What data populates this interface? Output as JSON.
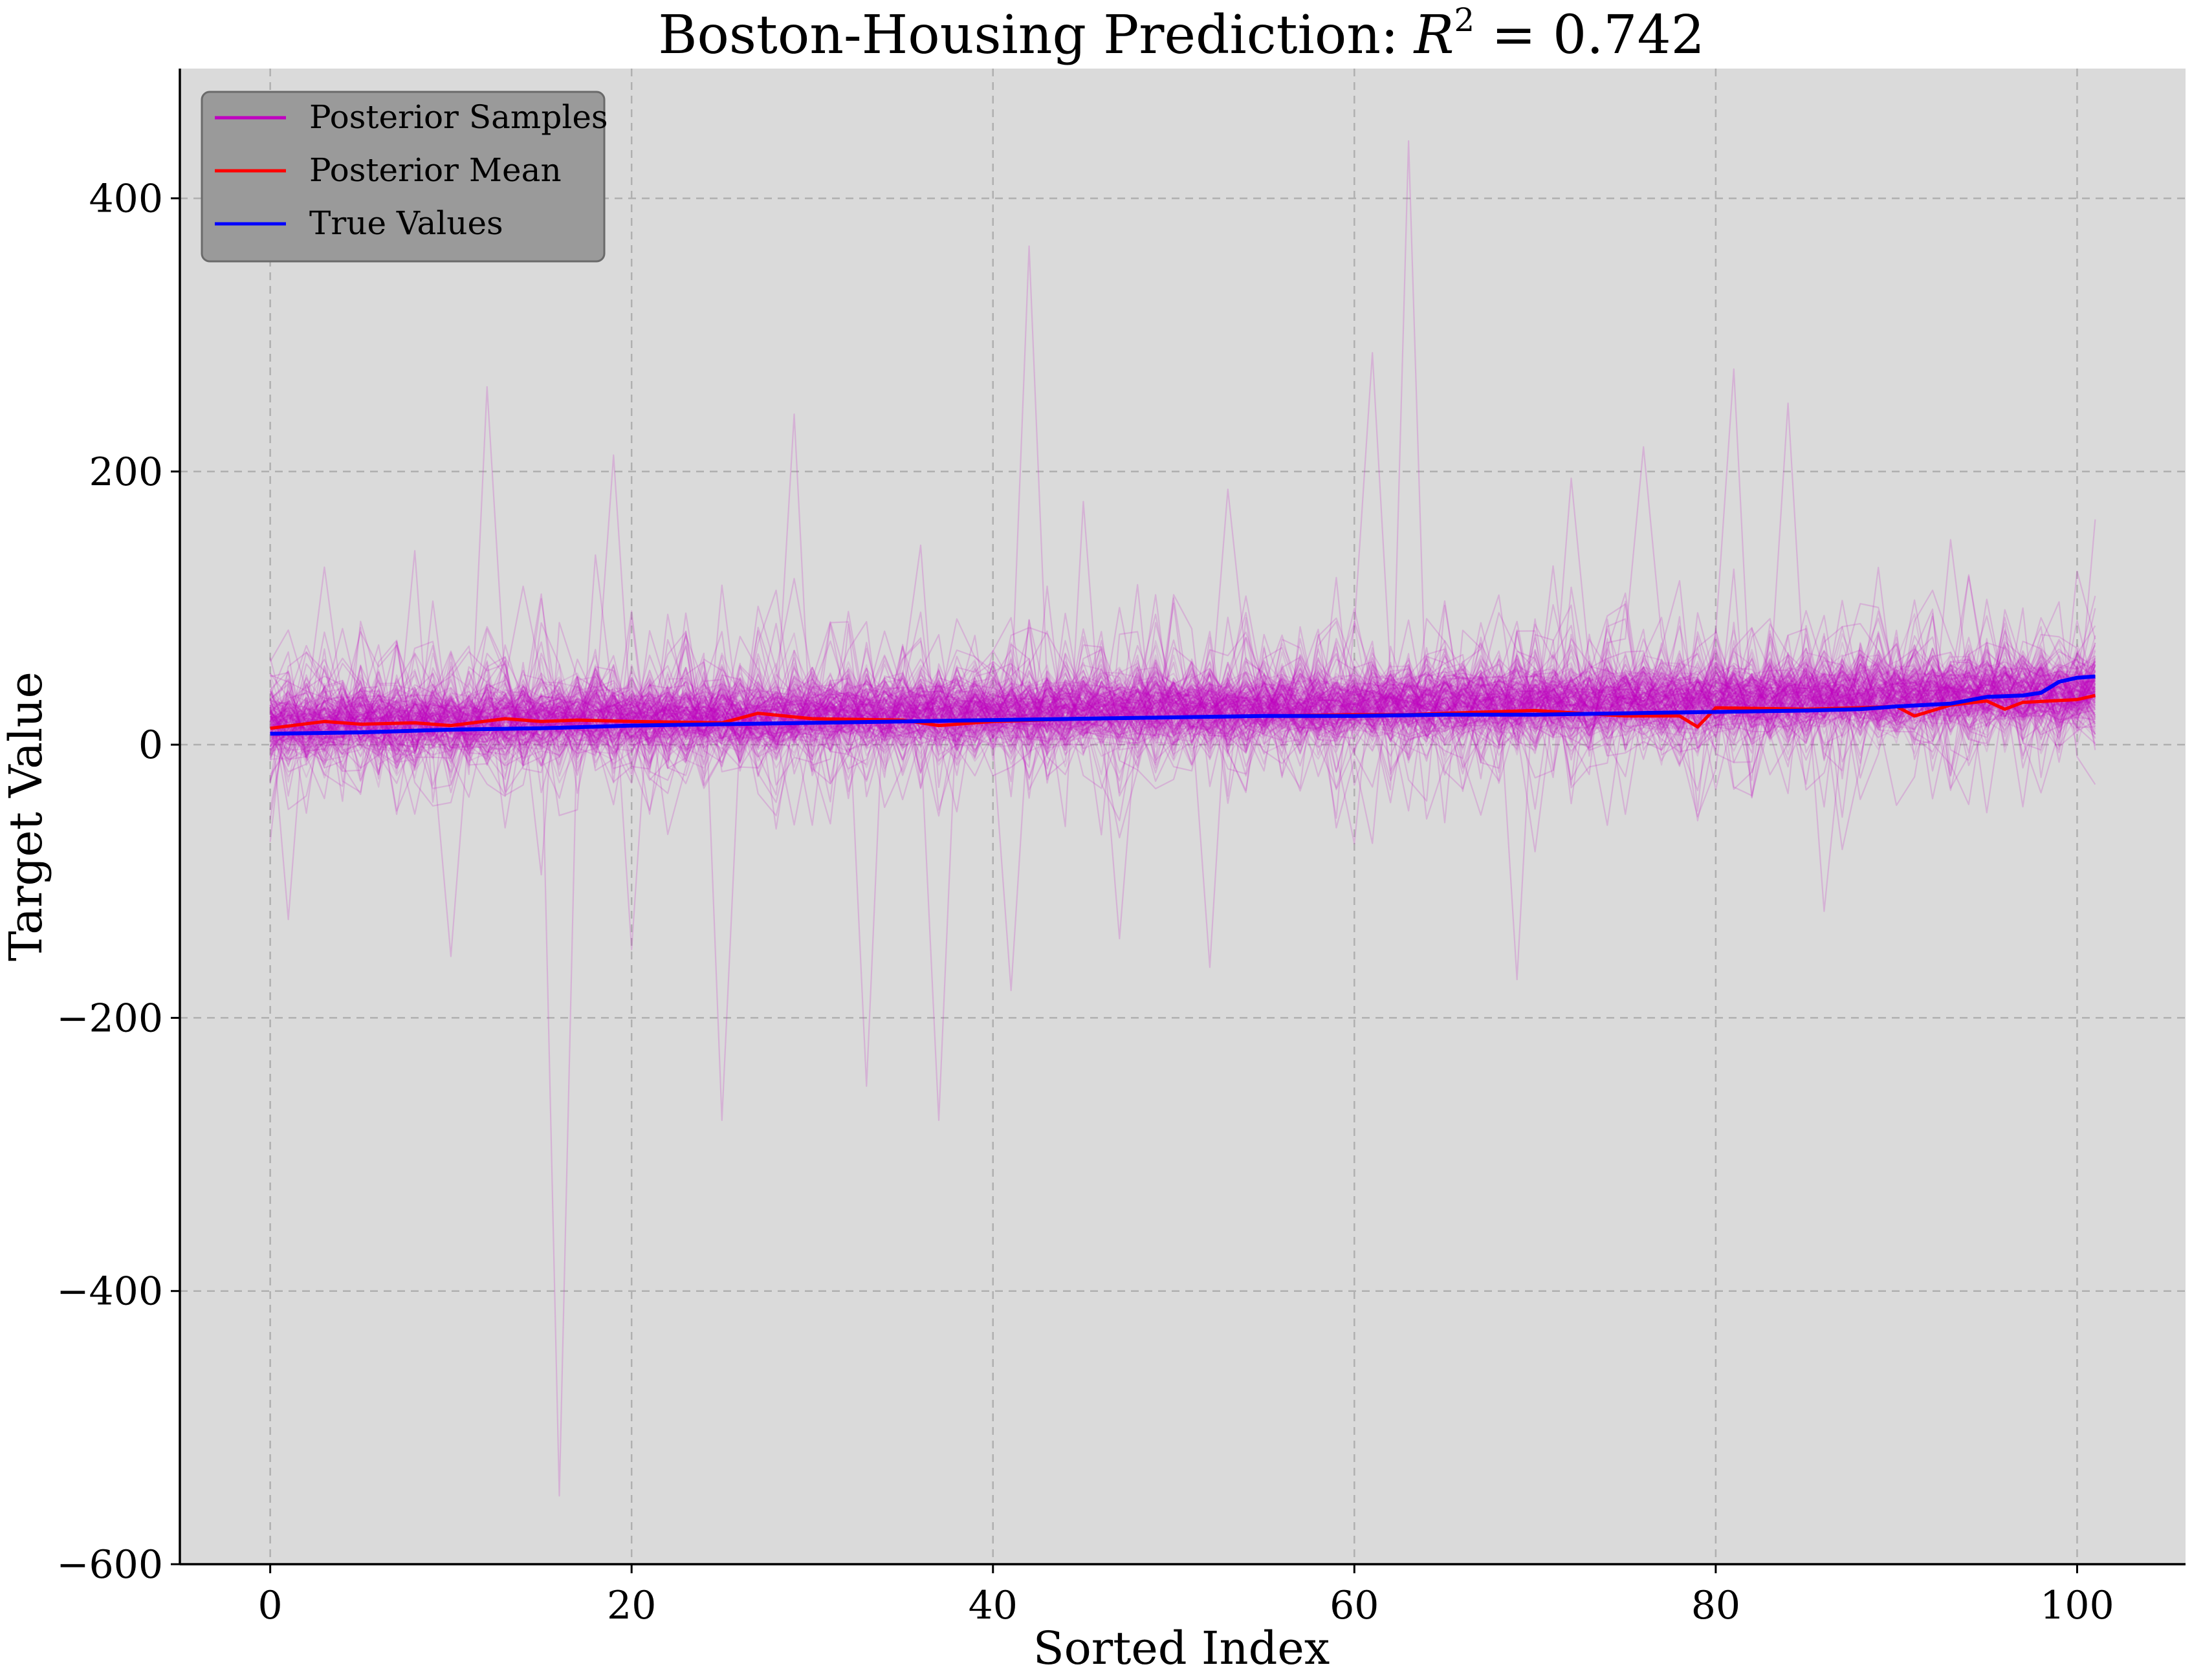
{
  "chart_data": {
    "type": "line",
    "title_prefix": "Boston-Housing Prediction:",
    "title_math_symbol": "R",
    "title_math_exponent": "2",
    "title_math_value": " = 0.742",
    "xlabel": "Sorted Index",
    "ylabel": "Target Value",
    "xlim": [
      -5,
      106
    ],
    "ylim": [
      -600,
      495
    ],
    "xticks": [
      0,
      20,
      40,
      60,
      80,
      100
    ],
    "yticks": [
      -600,
      -400,
      -200,
      0,
      200,
      400
    ],
    "xtick_labels": [
      "0",
      "20",
      "40",
      "60",
      "80",
      "100"
    ],
    "ytick_labels": [
      "−600",
      "−400",
      "−200",
      "0",
      "200",
      "400"
    ],
    "grid": true,
    "background_color": "#dadada",
    "legend": {
      "placement": "top-left",
      "entries": [
        {
          "label": "Posterior Samples",
          "color": "#c000c0"
        },
        {
          "label": "Posterior Mean",
          "color": "#ff0000"
        },
        {
          "label": "True Values",
          "color": "#0000ff"
        }
      ]
    },
    "series": [
      {
        "name": "True Values",
        "color": "#0000ff",
        "x": [
          0,
          5,
          10,
          15,
          20,
          25,
          30,
          35,
          40,
          45,
          50,
          55,
          60,
          65,
          70,
          75,
          80,
          85,
          88,
          90,
          93,
          95,
          97,
          98,
          99,
          100,
          101
        ],
        "y": [
          8,
          9,
          11,
          12,
          14,
          15,
          16,
          17,
          18,
          19,
          20,
          21,
          21,
          22,
          22,
          23,
          24,
          25,
          26,
          28,
          30,
          35,
          36,
          38,
          46,
          49,
          50
        ]
      },
      {
        "name": "Posterior Mean",
        "color": "#ff0000",
        "x": [
          0,
          3,
          5,
          8,
          10,
          13,
          15,
          17,
          20,
          25,
          27,
          30,
          35,
          37,
          40,
          45,
          50,
          55,
          60,
          63,
          65,
          70,
          75,
          78,
          79,
          80,
          85,
          88,
          90,
          91,
          93,
          95,
          96,
          97,
          100,
          101
        ],
        "y": [
          12,
          17,
          15,
          16,
          14,
          19,
          17,
          18,
          17,
          16,
          23,
          19,
          18,
          14,
          17,
          19,
          20,
          21,
          22,
          22,
          23,
          25,
          21,
          21,
          13,
          27,
          26,
          27,
          28,
          21,
          29,
          32,
          26,
          31,
          33,
          36
        ]
      },
      {
        "name": "Posterior Samples",
        "color": "#c000c0",
        "band_center_start": 15,
        "band_center_end": 38,
        "band_sigma": 14,
        "sample_count": 200,
        "spikes": [
          {
            "x": 16,
            "y": -550
          },
          {
            "x": 63,
            "y": 442
          },
          {
            "x": 42,
            "y": 365
          },
          {
            "x": 12,
            "y": 262
          },
          {
            "x": 61,
            "y": 287
          },
          {
            "x": 81,
            "y": 275
          },
          {
            "x": 25,
            "y": -275
          },
          {
            "x": 37,
            "y": -275
          },
          {
            "x": 33,
            "y": -250
          },
          {
            "x": 29,
            "y": 242
          },
          {
            "x": 84,
            "y": 250
          },
          {
            "x": 19,
            "y": 212
          },
          {
            "x": 76,
            "y": 218
          },
          {
            "x": 1,
            "y": -128
          },
          {
            "x": 10,
            "y": -155
          },
          {
            "x": 20,
            "y": -150
          },
          {
            "x": 53,
            "y": 187
          },
          {
            "x": 69,
            "y": -172
          },
          {
            "x": 52,
            "y": -163
          },
          {
            "x": 41,
            "y": -180
          },
          {
            "x": 72,
            "y": 195
          },
          {
            "x": 101,
            "y": 165
          },
          {
            "x": 8,
            "y": 142
          },
          {
            "x": 36,
            "y": 146
          },
          {
            "x": 45,
            "y": 178
          },
          {
            "x": 47,
            "y": -142
          },
          {
            "x": 3,
            "y": 130
          },
          {
            "x": 86,
            "y": -122
          },
          {
            "x": 93,
            "y": 150
          }
        ]
      }
    ]
  }
}
